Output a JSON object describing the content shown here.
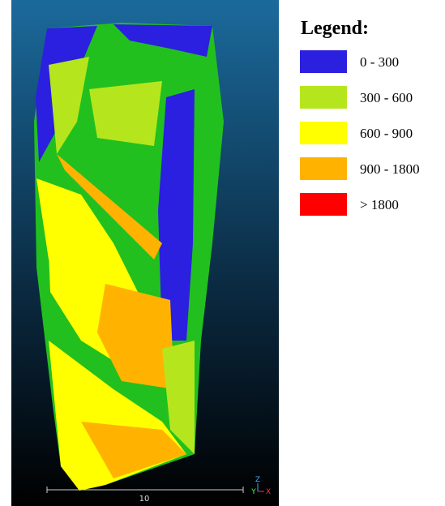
{
  "viewer": {
    "scale_bar_label": "10",
    "axes": {
      "z": "Z",
      "y": "Y",
      "x": "X"
    }
  },
  "legend": {
    "title": "Legend:",
    "items": [
      {
        "label": "0 - 300",
        "color": "#2b1fe0"
      },
      {
        "label": "300 - 600",
        "color": "#b5e61d"
      },
      {
        "label": "600 - 900",
        "color": "#ffff00"
      },
      {
        "label": "900 - 1800",
        "color": "#ffb300"
      },
      {
        "label": "> 1800",
        "color": "#ff0000"
      }
    ]
  }
}
